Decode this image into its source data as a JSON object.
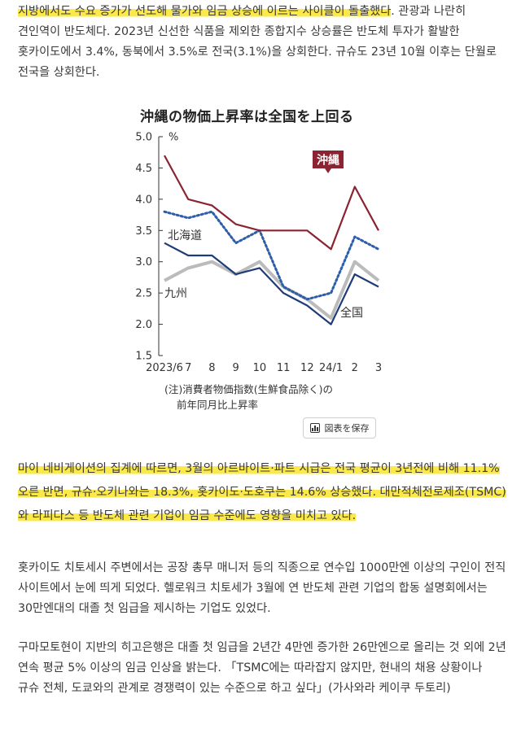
{
  "article": {
    "p1_highlight": "지방에서도 수요 증가가 선도해 물가와 임금 상승에 이르는 사이클이 돌출했다",
    "p1_rest": ". 관광과 나란히 견인역이 반도체다. 2023년 신선한 식품을 제외한 종합지수 상승률은 반도체 투자가 활발한 홋카이도에서 3.4%, 동북에서 3.5%로 전국(3.1%)을 상회한다. 규슈도 23년 10월 이후는 단월로 전국을 상회한다.",
    "p2": "마이 네비게이션의 집계에 따르면, 3월의 아르바이트·파트 시급은 전국 평균이 3년전에 비해 11.1% 오른 반면, 규슈·오키나와는 18.3%, 홋카이도·도호쿠는 14.6% 상승했다. 대만적체전로제조(TSMC)와 라피다스 등 반도체 관련 기업이 임금 수준에도 영향을 미치고 있다.",
    "p3": "홋카이도 치토세시 주변에서는 공장 총무 매니저 등의 직종으로 연수입 1000만엔 이상의 구인이 전직 사이트에서 눈에 띄게 되었다. 헬로워크 치토세가 3월에 연 반도체 관련 기업의 합동 설명회에서는 30만엔대의 대졸 첫 임급을 제시하는 기업도 있었다.",
    "p4": "구마모토현이 지반의 히고은행은 대졸 첫 임급을 2년간 4만엔 증가한 26만엔으로 올리는 것 외에 2년 연속 평균 5% 이상의 임금 인상을 밝는다. 「TSMC에는 따라잡지 않지만, 현내의 채용 상황이나 규슈 전체, 도쿄와의 관계로 경쟁력이 있는 수준으로 하고 싶다」(가사와라 케이쿠 두토리)"
  },
  "chart_data": {
    "type": "line",
    "title": "沖縄の物価上昇率は全国を上回る",
    "y_unit": "%",
    "ylim": [
      1.5,
      5.0
    ],
    "y_ticks": [
      "5.0",
      "4.5",
      "4.0",
      "3.5",
      "3.0",
      "2.5",
      "2.0",
      "1.5"
    ],
    "x_ticks": [
      "2023/6",
      "7",
      "8",
      "9",
      "10",
      "11",
      "12",
      "24/1",
      "2",
      "3"
    ],
    "note_line1": "(注)消費者物価指数(生鮮食品除く)の",
    "note_line2": "前年同月比上昇率",
    "series": [
      {
        "name": "沖縄",
        "color": "#8b2332",
        "style": "solid",
        "values": [
          4.7,
          4.0,
          3.9,
          3.6,
          3.5,
          3.5,
          3.5,
          3.2,
          4.2,
          3.5
        ]
      },
      {
        "name": "北海道",
        "color": "#2e5ea8",
        "style": "dotted",
        "values": [
          3.8,
          3.7,
          3.8,
          3.3,
          3.5,
          2.6,
          2.4,
          2.5,
          3.4,
          3.2
        ]
      },
      {
        "name": "九州",
        "color": "#bbbbbb",
        "style": "solid",
        "values": [
          2.7,
          2.9,
          3.0,
          2.8,
          3.0,
          2.6,
          2.4,
          2.1,
          3.0,
          2.7
        ]
      },
      {
        "name": "全国",
        "color": "#1f3c78",
        "style": "solid",
        "values": [
          3.3,
          3.1,
          3.1,
          2.8,
          2.9,
          2.5,
          2.3,
          2.0,
          2.8,
          2.6
        ]
      }
    ]
  },
  "save_button": {
    "label": "図表を保存",
    "icon": "bar-chart-icon"
  }
}
